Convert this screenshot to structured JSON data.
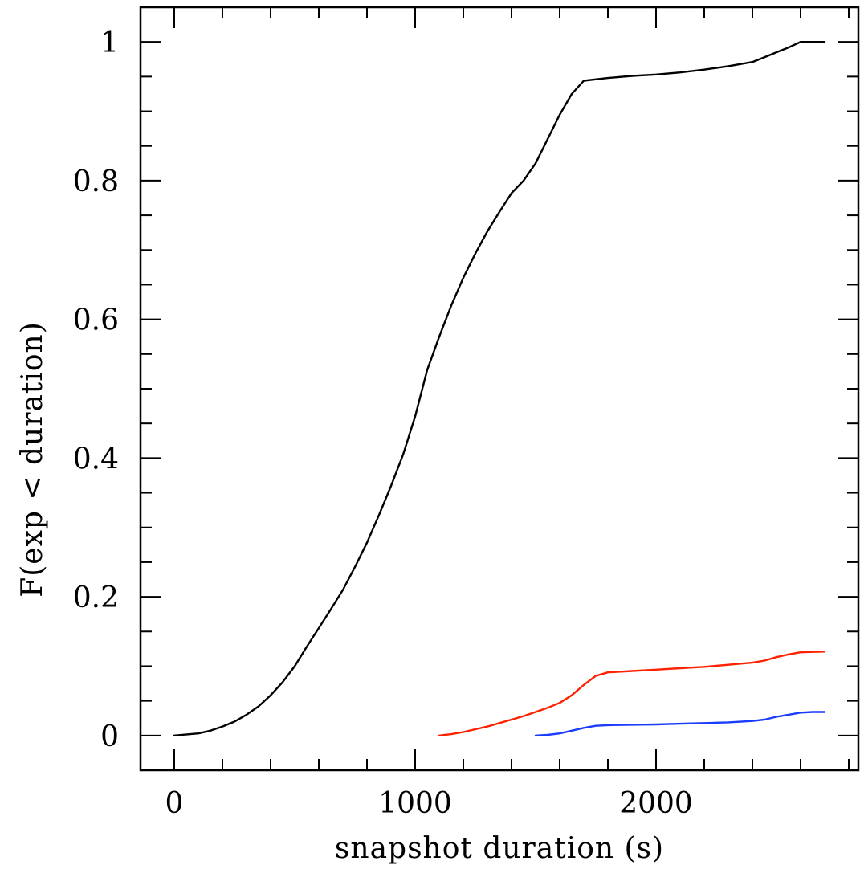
{
  "chart_data": {
    "type": "line",
    "title": "",
    "xlabel": "snapshot duration (s)",
    "ylabel": "F(exp < duration)",
    "xlim": [
      -140,
      2840
    ],
    "ylim": [
      -0.05,
      1.05
    ],
    "x_ticks": [
      {
        "value": 0,
        "label": "0"
      },
      {
        "value": 1000,
        "label": "1000"
      },
      {
        "value": 2000,
        "label": "2000"
      }
    ],
    "x_minor_step": 200,
    "y_ticks": [
      {
        "value": 0,
        "label": "0"
      },
      {
        "value": 0.2,
        "label": "0.2"
      },
      {
        "value": 0.4,
        "label": "0.4"
      },
      {
        "value": 0.6,
        "label": "0.6"
      },
      {
        "value": 0.8,
        "label": "0.8"
      },
      {
        "value": 1,
        "label": "1"
      }
    ],
    "y_minor_step": 0.05,
    "grid": false,
    "legend": "none",
    "series": [
      {
        "color": "#000000",
        "points": [
          [
            0,
            0
          ],
          [
            100,
            0.003
          ],
          [
            150,
            0.007
          ],
          [
            200,
            0.013
          ],
          [
            250,
            0.02
          ],
          [
            300,
            0.03
          ],
          [
            350,
            0.042
          ],
          [
            400,
            0.058
          ],
          [
            450,
            0.077
          ],
          [
            500,
            0.1
          ],
          [
            550,
            0.128
          ],
          [
            600,
            0.155
          ],
          [
            650,
            0.182
          ],
          [
            700,
            0.21
          ],
          [
            750,
            0.243
          ],
          [
            800,
            0.278
          ],
          [
            850,
            0.318
          ],
          [
            900,
            0.36
          ],
          [
            950,
            0.405
          ],
          [
            1000,
            0.46
          ],
          [
            1050,
            0.527
          ],
          [
            1100,
            0.575
          ],
          [
            1150,
            0.62
          ],
          [
            1200,
            0.66
          ],
          [
            1250,
            0.695
          ],
          [
            1300,
            0.727
          ],
          [
            1350,
            0.755
          ],
          [
            1400,
            0.782
          ],
          [
            1450,
            0.8
          ],
          [
            1500,
            0.825
          ],
          [
            1550,
            0.86
          ],
          [
            1600,
            0.895
          ],
          [
            1650,
            0.925
          ],
          [
            1700,
            0.944
          ],
          [
            1800,
            0.948
          ],
          [
            1900,
            0.951
          ],
          [
            2000,
            0.953
          ],
          [
            2100,
            0.956
          ],
          [
            2200,
            0.96
          ],
          [
            2300,
            0.965
          ],
          [
            2400,
            0.971
          ],
          [
            2450,
            0.978
          ],
          [
            2500,
            0.985
          ],
          [
            2550,
            0.992
          ],
          [
            2600,
            1.0
          ],
          [
            2700,
            1.0
          ]
        ]
      },
      {
        "color": "#ff2200",
        "points": [
          [
            1100,
            0
          ],
          [
            1150,
            0.002
          ],
          [
            1200,
            0.005
          ],
          [
            1250,
            0.009
          ],
          [
            1300,
            0.013
          ],
          [
            1350,
            0.018
          ],
          [
            1400,
            0.023
          ],
          [
            1450,
            0.028
          ],
          [
            1500,
            0.034
          ],
          [
            1550,
            0.04
          ],
          [
            1600,
            0.047
          ],
          [
            1650,
            0.058
          ],
          [
            1700,
            0.073
          ],
          [
            1750,
            0.086
          ],
          [
            1800,
            0.091
          ],
          [
            1900,
            0.093
          ],
          [
            2000,
            0.095
          ],
          [
            2100,
            0.097
          ],
          [
            2200,
            0.099
          ],
          [
            2300,
            0.102
          ],
          [
            2400,
            0.105
          ],
          [
            2450,
            0.108
          ],
          [
            2500,
            0.113
          ],
          [
            2550,
            0.117
          ],
          [
            2600,
            0.12
          ],
          [
            2700,
            0.121
          ]
        ]
      },
      {
        "color": "#1a3cff",
        "points": [
          [
            1500,
            0
          ],
          [
            1550,
            0.001
          ],
          [
            1600,
            0.003
          ],
          [
            1650,
            0.007
          ],
          [
            1700,
            0.011
          ],
          [
            1750,
            0.014
          ],
          [
            1800,
            0.015
          ],
          [
            1900,
            0.0155
          ],
          [
            2000,
            0.016
          ],
          [
            2100,
            0.017
          ],
          [
            2200,
            0.018
          ],
          [
            2300,
            0.019
          ],
          [
            2400,
            0.021
          ],
          [
            2450,
            0.023
          ],
          [
            2500,
            0.027
          ],
          [
            2550,
            0.03
          ],
          [
            2600,
            0.033
          ],
          [
            2650,
            0.034
          ],
          [
            2700,
            0.034
          ]
        ]
      }
    ]
  }
}
